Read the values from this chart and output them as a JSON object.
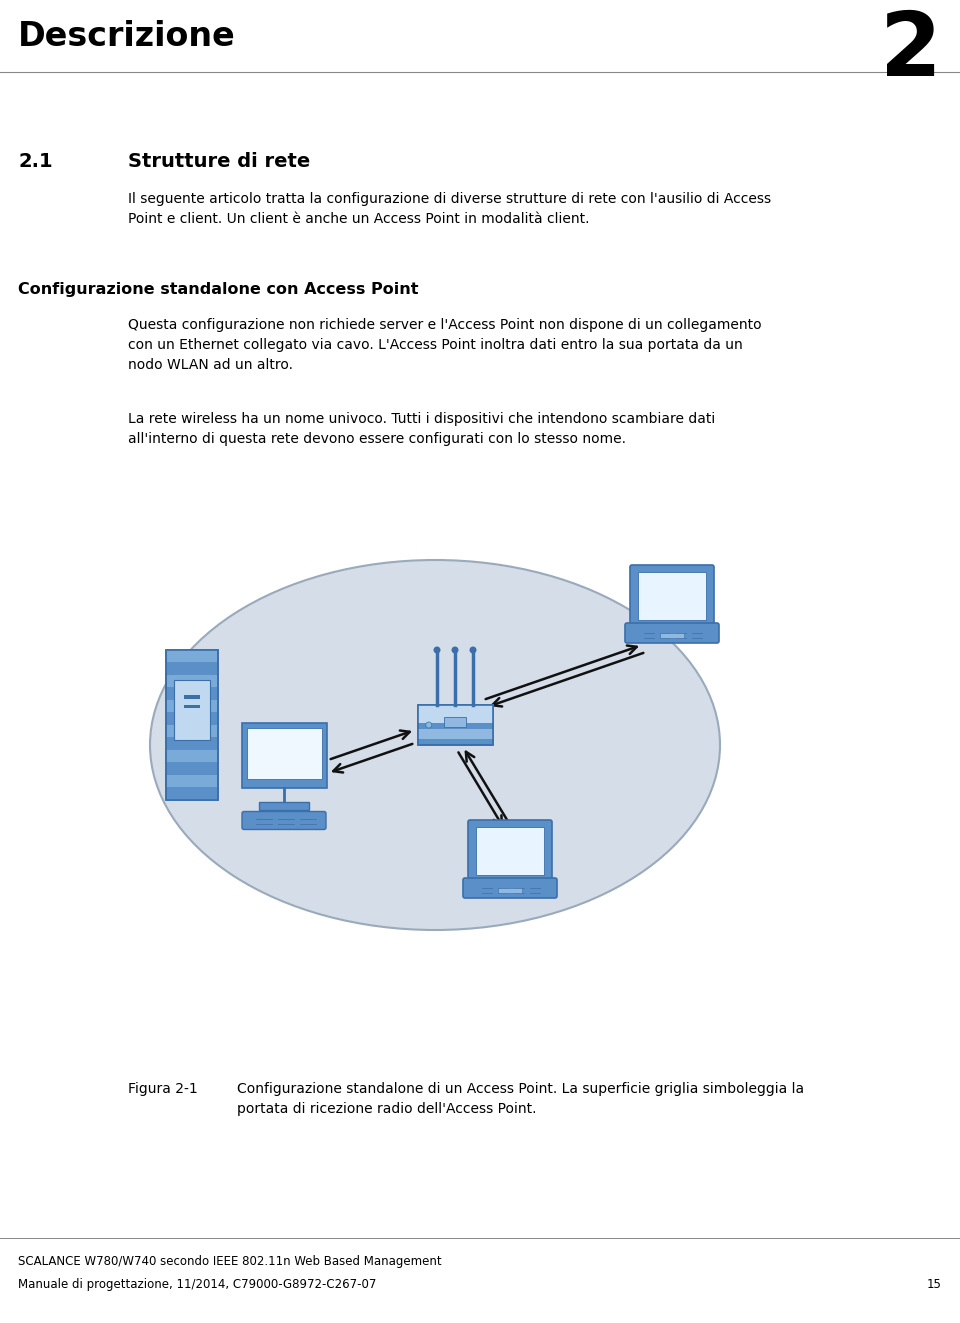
{
  "page_title": "Descrizione",
  "page_number": "2",
  "section_number": "2.1",
  "section_title": "Strutture di rete",
  "intro_text": "Il seguente articolo tratta la configurazione di diverse strutture di rete con l'ausilio di Access\nPoint e client. Un client è anche un Access Point in modalità client.",
  "subsection_title": "Configurazione standalone con Access Point",
  "body_text1": "Questa configurazione non richiede server e l'Access Point non dispone di un collegamento\ncon un Ethernet collegato via cavo. L'Access Point inoltra dati entro la sua portata da un\nnodo WLAN ad un altro.",
  "body_text2": "La rete wireless ha un nome univoco. Tutti i dispositivi che intendono scambiare dati\nall'interno di questa rete devono essere configurati con lo stesso nome.",
  "figure_caption_label": "Figura 2-1",
  "figure_caption_text": "Configurazione standalone di un Access Point. La superficie griglia simboleggia la\nportata di ricezione radio dell'Access Point.",
  "footer_line1": "SCALANCE W780/W740 secondo IEEE 802.11n Web Based Management",
  "footer_line2": "Manuale di progettazione, 11/2014, C79000-G8972-C267-07",
  "footer_page": "15",
  "bg_color": "#ffffff",
  "text_color": "#000000",
  "ellipse_fill": "#d4dde8",
  "ellipse_edge": "#9aaabb",
  "blue_dark": "#3a6faa",
  "blue_mid": "#5a8fc8",
  "blue_light": "#90b8e0",
  "blue_lighter": "#c0d8f0",
  "blue_stripe_light": "#7aaad8",
  "blue_stripe_dark": "#4a70b0",
  "arrow_color": "#111111",
  "page_width": 9.6,
  "page_height": 13.23
}
